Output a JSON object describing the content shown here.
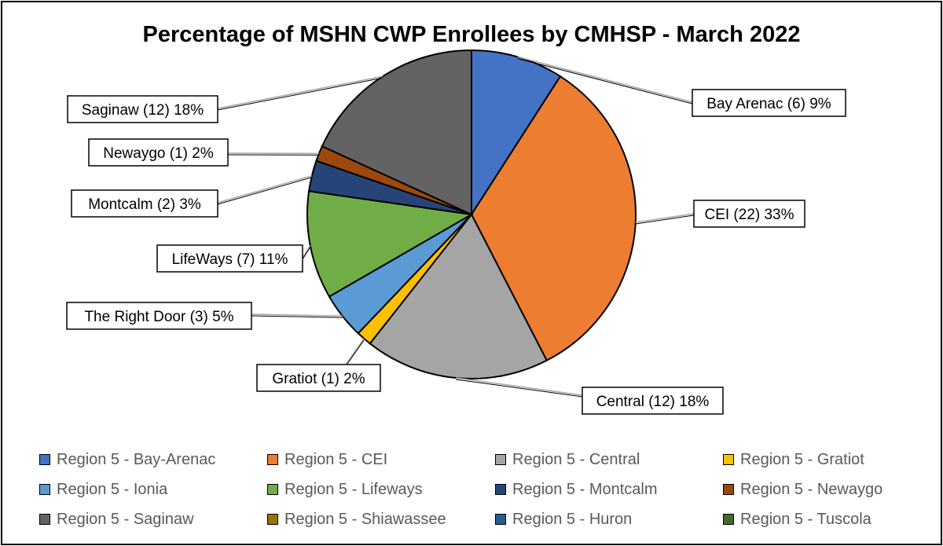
{
  "chart_data": {
    "type": "pie",
    "title": "Percentage of MSHN CWP Enrollees by CMHSP - March 2022",
    "start_angle": "12 o'clock, clockwise",
    "slices": [
      {
        "legend": "Region 5 - Bay-Arenac",
        "label": "Bay Arenac (6) 9%",
        "value": 6,
        "percent": 9,
        "color": "#4472C4"
      },
      {
        "legend": "Region 5 - CEI",
        "label": "CEI (22) 33%",
        "value": 22,
        "percent": 33,
        "color": "#ED7D31"
      },
      {
        "legend": "Region 5 - Central",
        "label": "Central (12) 18%",
        "value": 12,
        "percent": 18,
        "color": "#A5A5A5"
      },
      {
        "legend": "Region 5 - Gratiot",
        "label": "Gratiot (1) 2%",
        "value": 1,
        "percent": 2,
        "color": "#FFC000"
      },
      {
        "legend": "Region 5 - Ionia",
        "label": "The Right Door (3) 5%",
        "value": 3,
        "percent": 5,
        "color": "#5B9BD5"
      },
      {
        "legend": "Region 5 - Lifeways",
        "label": "LifeWays (7) 11%",
        "value": 7,
        "percent": 11,
        "color": "#70AD47"
      },
      {
        "legend": "Region 5 - Montcalm",
        "label": "Montcalm (2) 3%",
        "value": 2,
        "percent": 3,
        "color": "#264478"
      },
      {
        "legend": "Region 5 - Newaygo",
        "label": "Newaygo (1) 2%",
        "value": 1,
        "percent": 2,
        "color": "#9E480E"
      },
      {
        "legend": "Region 5 - Saginaw",
        "label": "Saginaw (12) 18%",
        "value": 12,
        "percent": 18,
        "color": "#636363"
      },
      {
        "legend": "Region 5 - Shiawassee",
        "label": "",
        "value": 0,
        "percent": 0,
        "color": "#997300"
      },
      {
        "legend": "Region 5 - Huron",
        "label": "",
        "value": 0,
        "percent": 0,
        "color": "#255E91"
      },
      {
        "legend": "Region 5 - Tuscola",
        "label": "",
        "value": 0,
        "percent": 0,
        "color": "#43682B"
      }
    ],
    "legend_position": "bottom"
  }
}
